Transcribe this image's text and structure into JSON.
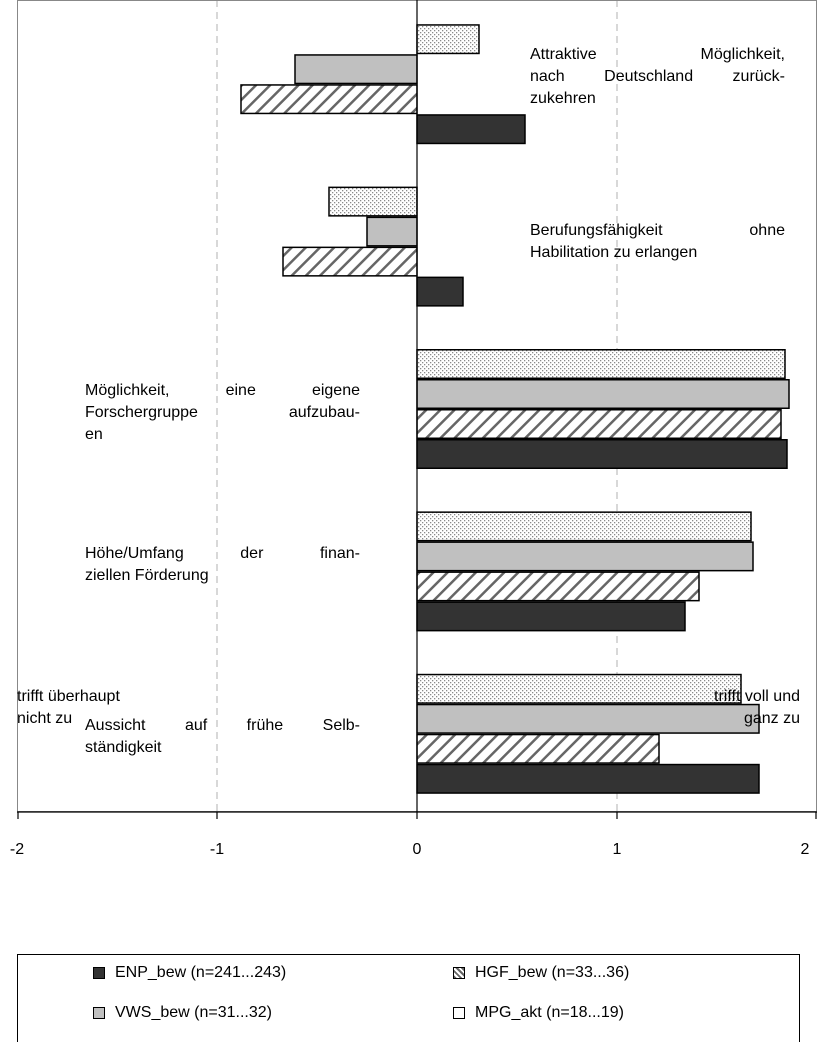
{
  "chart_data": {
    "type": "bar",
    "orientation": "horizontal",
    "xlim": [
      -2,
      2
    ],
    "x_ticks": [
      "-2",
      "-1",
      "0",
      "1",
      "2"
    ],
    "x_left_label": "trifft überhaupt nicht zu",
    "x_right_label": "trifft voll und ganz zu",
    "categories": [
      "Attraktive Möglichkeit, nach Deutschland zurück-zukehren",
      "Berufungsfähigkeit ohne Habilitation zu erlangen",
      "Möglichkeit, eine eigene Forschergruppe aufzubau-en",
      "Höhe/Umfang der finan-ziellen Förderung",
      "Aussicht auf frühe Selb-ständigkeit"
    ],
    "category_label_lines": [
      [
        "Attraktive Möglichkeit,",
        "nach Deutschland zurück-",
        "zukehren"
      ],
      [
        "Berufungsfähigkeit ohne",
        "Habilitation zu erlangen"
      ],
      [
        "Möglichkeit, eine eigene",
        "Forschergruppe aufzubau-",
        "en"
      ],
      [
        "Höhe/Umfang der finan-",
        "ziellen Förderung"
      ],
      [
        "Aussicht auf frühe Selb-",
        "ständigkeit"
      ]
    ],
    "series": [
      {
        "name": "MPG_akt (n=18...19)",
        "pattern": "dots",
        "values": [
          0.31,
          -0.44,
          1.84,
          1.67,
          1.62
        ]
      },
      {
        "name": "VWS_bew (n=31...32)",
        "pattern": "gray",
        "values": [
          -0.61,
          -0.25,
          1.86,
          1.68,
          1.71
        ]
      },
      {
        "name": "HGF_bew (n=33...36)",
        "pattern": "hatch",
        "values": [
          -0.88,
          -0.67,
          1.82,
          1.41,
          1.21
        ]
      },
      {
        "name": "ENP_bew (n=241...243)",
        "pattern": "dark",
        "values": [
          0.54,
          0.23,
          1.85,
          1.34,
          1.71
        ]
      }
    ],
    "legend": {
      "position": "bottom",
      "order": [
        "ENP_bew (n=241...243)",
        "HGF_bew (n=33...36)",
        "VWS_bew (n=31...32)",
        "MPG_akt (n=18...19)"
      ]
    },
    "colors": {
      "dark": "#333333",
      "gray": "#c0c0c0",
      "hatch_line": "#666666",
      "dots": "#b8b8b8"
    }
  }
}
